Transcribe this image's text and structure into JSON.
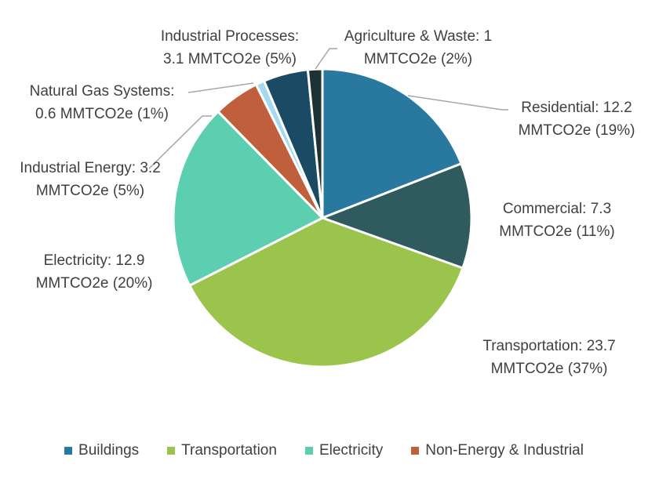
{
  "chart_data": {
    "type": "pie",
    "unit": "MMTCO2e",
    "slices": [
      {
        "name": "Residential",
        "value": 12.2,
        "percent": 19,
        "color": "#2878a0",
        "label_lines": [
          "Residential: 12.2",
          "MMTCO2e (19%)"
        ]
      },
      {
        "name": "Commercial",
        "value": 7.3,
        "percent": 11,
        "color": "#2f5a5e",
        "label_lines": [
          "Commercial: 7.3",
          "MMTCO2e (11%)"
        ]
      },
      {
        "name": "Transportation",
        "value": 23.7,
        "percent": 37,
        "color": "#9bc44c",
        "label_lines": [
          "Transportation: 23.7",
          "MMTCO2e (37%)"
        ]
      },
      {
        "name": "Electricity",
        "value": 12.9,
        "percent": 20,
        "color": "#5bcfb0",
        "label_lines": [
          "Electricity: 12.9",
          "MMTCO2e (20%)"
        ]
      },
      {
        "name": "Industrial Energy",
        "value": 3.2,
        "percent": 5,
        "color": "#c05f3c",
        "label_lines": [
          "Industrial Energy: 3.2",
          "MMTCO2e (5%)"
        ]
      },
      {
        "name": "Natural Gas Systems",
        "value": 0.6,
        "percent": 1,
        "color": "#a6d8ee",
        "label_lines": [
          "Natural Gas Systems:",
          "0.6 MMTCO2e (1%)"
        ]
      },
      {
        "name": "Industrial Processes",
        "value": 3.1,
        "percent": 5,
        "color": "#1b4a64",
        "label_lines": [
          "Industrial Processes:",
          "3.1 MMTCO2e (5%)"
        ]
      },
      {
        "name": "Agriculture & Waste",
        "value": 1,
        "percent": 2,
        "color": "#1e3236",
        "label_lines": [
          "Agriculture & Waste: 1",
          "MMTCO2e (2%)"
        ]
      }
    ],
    "legend": [
      {
        "label": "Buildings",
        "color": "#2878a0"
      },
      {
        "label": "Transportation",
        "color": "#9bc44c"
      },
      {
        "label": "Electricity",
        "color": "#5bcfb0"
      },
      {
        "label": "Non-Energy & Industrial",
        "color": "#c05f3c"
      }
    ],
    "legend_position": "bottom"
  }
}
